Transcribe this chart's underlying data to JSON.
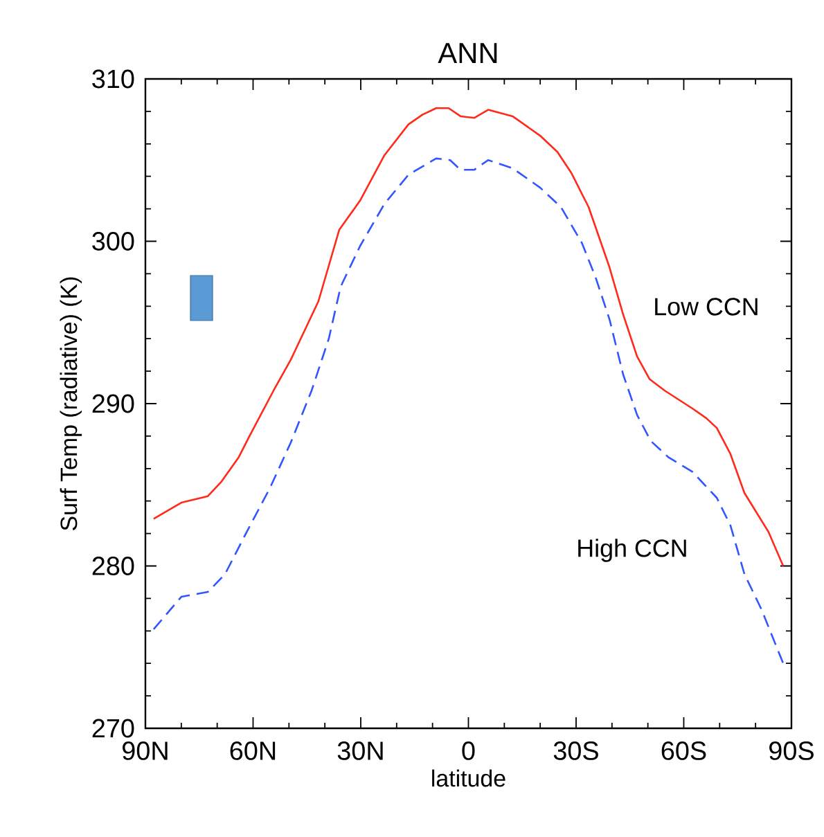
{
  "chart_data": {
    "type": "line",
    "title": "ANN",
    "xlabel": "latitude",
    "ylabel": "Surf Temp (radiative) (K)",
    "xlim": [
      90,
      -90
    ],
    "ylim": [
      270,
      310
    ],
    "xticks": [
      {
        "value": 90,
        "label": "90N"
      },
      {
        "value": 60,
        "label": "60N"
      },
      {
        "value": 30,
        "label": "30N"
      },
      0,
      {
        "value": -30,
        "label": "30S"
      },
      {
        "value": -60,
        "label": "60S"
      },
      {
        "value": -90,
        "label": "90S"
      }
    ],
    "yticks": [
      270,
      280,
      290,
      300,
      310
    ],
    "grid": false,
    "marker": "none",
    "series": [
      {
        "color": "#ff2a1a",
        "line_style": "solid",
        "x": [
          87.7,
          80,
          72.6,
          68.8,
          64,
          61,
          54.3,
          49.5,
          41.8,
          36,
          30.2,
          23.4,
          16.7,
          12.8,
          9,
          5.5,
          2.2,
          -1.6,
          -5.5,
          -12.3,
          -20,
          -24.8,
          -28.7,
          -33.5,
          -39.3,
          -43.1,
          -47,
          -50.5,
          -54.7,
          -62.4,
          -66.3,
          -69.2,
          -73,
          -76.9,
          -83.6,
          -87.7
        ],
        "values": [
          282.9,
          283.9,
          284.3,
          285.2,
          286.7,
          288.0,
          290.8,
          292.7,
          296.3,
          300.7,
          302.5,
          305.3,
          307.2,
          307.8,
          308.2,
          308.2,
          307.7,
          307.6,
          308.1,
          307.7,
          306.5,
          305.5,
          304.2,
          302.1,
          298.4,
          295.5,
          292.9,
          291.5,
          290.8,
          289.7,
          289.1,
          288.5,
          286.9,
          284.5,
          282.1,
          280.0
        ]
      },
      {
        "color": "#3355ff",
        "line_style": "dashed",
        "x": [
          87.7,
          80,
          72.6,
          67.8,
          62,
          55.3,
          49.5,
          43.7,
          38.9,
          35.6,
          30.2,
          23.4,
          16.7,
          9,
          5.1,
          2.2,
          -1.6,
          -5.5,
          -12.3,
          -20,
          -25.8,
          -31.6,
          -35.4,
          -39.3,
          -43.1,
          -47,
          -50.8,
          -55.7,
          -62.4,
          -69.2,
          -73,
          -76.9,
          -81.7,
          -87.7
        ],
        "values": [
          276.1,
          278.1,
          278.4,
          279.5,
          282.0,
          284.8,
          287.6,
          290.8,
          294.0,
          297.2,
          299.7,
          302.3,
          304.1,
          305.1,
          305.0,
          304.4,
          304.4,
          305.0,
          304.5,
          303.3,
          302.1,
          299.9,
          297.8,
          295.2,
          291.8,
          289.3,
          287.7,
          286.7,
          285.8,
          284.2,
          282.5,
          279.5,
          277.3,
          274.0
        ]
      }
    ],
    "annotations": [
      "Low CCN",
      "High CCN"
    ]
  }
}
